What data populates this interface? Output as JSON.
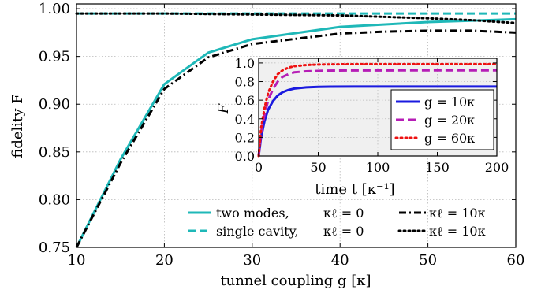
{
  "chart_data": [
    {
      "type": "line",
      "xlabel": "tunnel coupling g [κ]",
      "ylabel": "fidelity F",
      "xlim": [
        10,
        60
      ],
      "ylim": [
        0.75,
        1.005
      ],
      "xticks": [
        "10",
        "20",
        "30",
        "40",
        "50",
        "60"
      ],
      "yticks": [
        "0.75",
        "0.80",
        "0.85",
        "0.90",
        "0.95",
        "1.00"
      ],
      "grid": true,
      "legend_position": "bottom-center",
      "series": [
        {
          "name": "two modes, κℓ = 0",
          "color": "#1fb8b8",
          "style": "solid",
          "x": [
            10,
            15,
            20,
            25,
            30,
            40,
            50,
            60
          ],
          "y": [
            0.75,
            0.842,
            0.921,
            0.954,
            0.968,
            0.981,
            0.986,
            0.989
          ]
        },
        {
          "name": "single cavity, κℓ = 0",
          "color": "#1fb8b8",
          "style": "dashed",
          "x": [
            10,
            20,
            30,
            40,
            50,
            60
          ],
          "y": [
            0.995,
            0.995,
            0.995,
            0.995,
            0.995,
            0.995
          ]
        },
        {
          "name": "κℓ = 10κ",
          "color": "#000000",
          "style": "dashdot",
          "x": [
            10,
            15,
            20,
            25,
            30,
            40,
            45,
            50,
            55,
            60
          ],
          "y": [
            0.75,
            0.838,
            0.916,
            0.949,
            0.963,
            0.974,
            0.976,
            0.977,
            0.977,
            0.975
          ]
        },
        {
          "name": "κℓ = 10κ",
          "color": "#000000",
          "style": "dotted",
          "x": [
            10,
            20,
            30,
            40,
            50,
            55,
            60
          ],
          "y": [
            0.995,
            0.995,
            0.994,
            0.993,
            0.99,
            0.988,
            0.985
          ]
        }
      ]
    },
    {
      "type": "line",
      "xlabel": "time t [κ⁻¹]",
      "ylabel": "F",
      "xlim": [
        0,
        200
      ],
      "ylim": [
        0,
        1.05
      ],
      "xticks": [
        "0",
        "50",
        "100",
        "150",
        "200"
      ],
      "yticks": [
        "0.0",
        "0.2",
        "0.4",
        "0.6",
        "0.8",
        "1.0"
      ],
      "grid": true,
      "legend_position": "center-right",
      "series": [
        {
          "name": "g = 10κ",
          "color": "#1a1adf",
          "style": "solid",
          "x": [
            0,
            2,
            5,
            8,
            12,
            16,
            20,
            25,
            30,
            40,
            50,
            60,
            80,
            100,
            150,
            200
          ],
          "y": [
            0,
            0.2,
            0.38,
            0.5,
            0.59,
            0.65,
            0.685,
            0.71,
            0.725,
            0.738,
            0.743,
            0.745,
            0.746,
            0.746,
            0.746,
            0.746
          ]
        },
        {
          "name": "g = 20κ",
          "color": "#b61db6",
          "style": "dashed",
          "x": [
            0,
            2,
            5,
            8,
            12,
            16,
            20,
            25,
            30,
            40,
            50,
            60,
            80,
            100,
            150,
            200
          ],
          "y": [
            0,
            0.25,
            0.45,
            0.6,
            0.72,
            0.8,
            0.85,
            0.88,
            0.9,
            0.91,
            0.915,
            0.918,
            0.92,
            0.92,
            0.921,
            0.921
          ]
        },
        {
          "name": "g = 60κ",
          "color": "#ee1111",
          "style": "dotted",
          "x": [
            0,
            2,
            5,
            8,
            12,
            16,
            20,
            25,
            30,
            40,
            50,
            60,
            80,
            100,
            150,
            200
          ],
          "y": [
            0,
            0.3,
            0.52,
            0.68,
            0.8,
            0.88,
            0.92,
            0.95,
            0.965,
            0.978,
            0.983,
            0.985,
            0.987,
            0.988,
            0.988,
            0.988
          ]
        }
      ]
    }
  ],
  "legend": {
    "main_left_1_label": "two modes,",
    "main_left_1_kappa": "κℓ = 0",
    "main_left_2_label": "single cavity,",
    "main_left_2_kappa": "κℓ = 0",
    "main_right_1": "κℓ = 10κ",
    "main_right_2": "κℓ = 10κ",
    "inset_1": "g = 10κ",
    "inset_2": "g = 20κ",
    "inset_3": "g = 60κ"
  }
}
